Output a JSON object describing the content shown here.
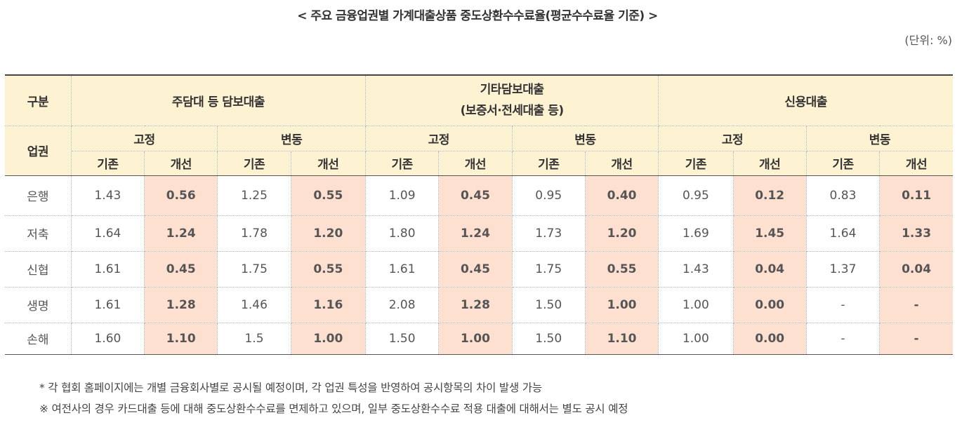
{
  "title": "< 주요 금융업권별 가계대출상품 중도상환수수료율(평균수수료율 기준) >",
  "unit": "(단위: %)",
  "table": {
    "header_category": "구분",
    "header_sector": "업권",
    "groups": [
      {
        "label": "주담대 등 담보대출",
        "sublabel": ""
      },
      {
        "label": "기타담보대출",
        "sublabel": "(보증서·전세대출 등)"
      },
      {
        "label": "신용대출",
        "sublabel": ""
      }
    ],
    "types": {
      "fixed": "고정",
      "variable": "변동"
    },
    "sub": {
      "existing": "기존",
      "improved": "개선"
    },
    "rows": [
      {
        "sector": "은행",
        "values": [
          "1.43",
          "0.56",
          "1.25",
          "0.55",
          "1.09",
          "0.45",
          "0.95",
          "0.40",
          "0.95",
          "0.12",
          "0.83",
          "0.11"
        ]
      },
      {
        "sector": "저축",
        "values": [
          "1.64",
          "1.24",
          "1.78",
          "1.20",
          "1.80",
          "1.24",
          "1.73",
          "1.20",
          "1.69",
          "1.45",
          "1.64",
          "1.33"
        ]
      },
      {
        "sector": "신협",
        "values": [
          "1.61",
          "0.45",
          "1.75",
          "0.55",
          "1.61",
          "0.45",
          "1.75",
          "0.55",
          "1.43",
          "0.04",
          "1.37",
          "0.04"
        ]
      },
      {
        "sector": "생명",
        "values": [
          "1.61",
          "1.28",
          "1.46",
          "1.16",
          "2.08",
          "1.28",
          "1.50",
          "1.00",
          "1.00",
          "0.00",
          "-",
          "-"
        ]
      },
      {
        "sector": "손해",
        "values": [
          "1.60",
          "1.10",
          "1.5",
          "1.00",
          "1.50",
          "1.00",
          "1.50",
          "1.10",
          "1.00",
          "0.00",
          "-",
          "-"
        ]
      }
    ]
  },
  "notes": [
    "* 각 협회 홈페이지에는 개별 금융회사별로 공시될 예정이며, 각 업권 특성을 반영하여 공시항목의 차이 발생 가능",
    "※ 여전사의 경우 카드대출 등에 대해 중도상환수수료를 면제하고 있으며, 일부 중도상환수수료 적용 대출에 대해서는 별도 공시 예정"
  ],
  "colors": {
    "header_bg": "#fdf3d2",
    "improved_bg": "#fde0d0",
    "improved_text": "#0a00e6"
  }
}
